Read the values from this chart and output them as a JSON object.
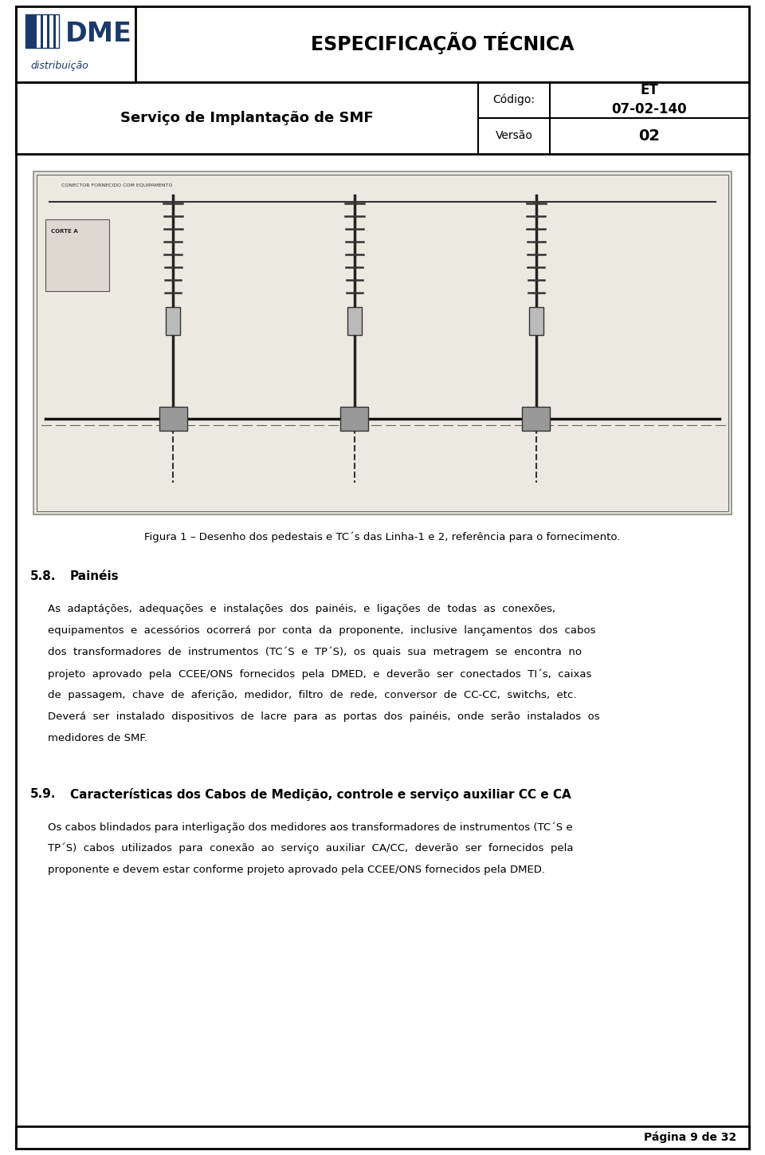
{
  "page_width": 9.6,
  "page_height": 14.48,
  "bg_color": "#ffffff",
  "header": {
    "logo_dme": "DME",
    "logo_sub": "distribuição",
    "title": "ESPECIFICAÇÃO TÉCNICA",
    "subtitle": "Serviço de Implantação de SMF",
    "codigo_label": "Código:",
    "codigo_value": "ET\n07-02-140",
    "versao_label": "Versão",
    "versao_value": "02"
  },
  "figure_caption": "Figura 1 – Desenho dos pedestais e TC´s das Linha-1 e 2, referência para o fornecimento.",
  "sections": [
    {
      "number": "5.8.",
      "title": "Painéis",
      "body_lines": [
        "As  adaptáções,  adequações  e  instalações  dos  painéis,  e  ligações  de  todas  as  conexões,",
        "equipamentos  e  acessórios  ocorrerá  por  conta  da  proponente,  inclusive  lançamentos  dos  cabos",
        "dos  transformadores  de  instrumentos  (TC´S  e  TP´S),  os  quais  sua  metragem  se  encontra  no",
        "projeto  aprovado  pela  CCEE/ONS  fornecidos  pela  DMED,  e  deverão  ser  conectados  TI´s,  caixas",
        "de  passagem,  chave  de  aferição,  medidor,  filtro  de  rede,  conversor  de  CC-CC,  switchs,  etc.",
        "Deverá  ser  instalado  dispositivos  de  lacre  para  as  portas  dos  painéis,  onde  serão  instalados  os",
        "medidores de SMF."
      ]
    },
    {
      "number": "5.9.",
      "title": "Características dos Cabos de Medição, controle e serviço auxiliar CC e CA",
      "body_lines": [
        "Os cabos blindados para interligação dos medidores aos transformadores de instrumentos (TC´S e",
        "TP´S)  cabos  utilizados  para  conexão  ao  serviço  auxiliar  CA/CC,  deverão  ser  fornecidos  pela",
        "proponente e devem estar conforme projeto aprovado pela CCEE/ONS fornecidos pela DMED."
      ]
    }
  ],
  "footer": "Página 9 de 32"
}
